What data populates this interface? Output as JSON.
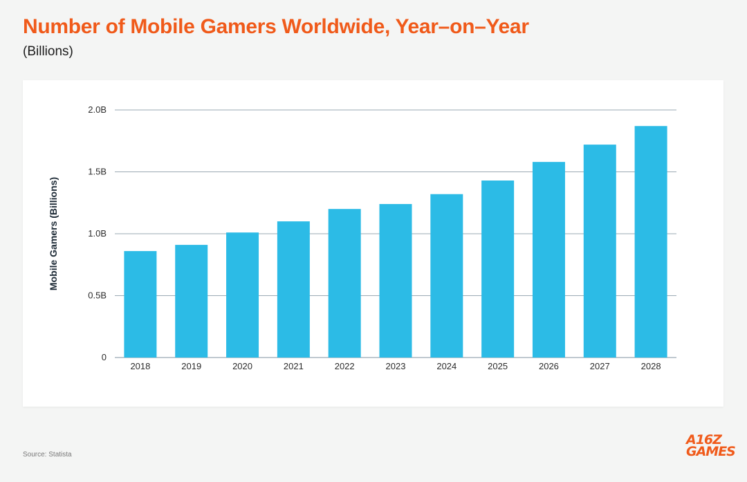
{
  "header": {
    "title": "Number of Mobile Gamers Worldwide, Year–on–Year",
    "subtitle": "(Billions)"
  },
  "colors": {
    "accent": "#f05a1a",
    "bar": "#2cbbe6",
    "grid": "#9aa9b3",
    "axis_title": "#1d2a36"
  },
  "footer": {
    "source": "Source:  Statista",
    "logo_line1": "A16Z",
    "logo_line2": "GAMES"
  },
  "chart_data": {
    "type": "bar",
    "title": "Number of Mobile Gamers Worldwide, Year–on–Year",
    "subtitle": "(Billions)",
    "xlabel": "",
    "ylabel": "Mobile Gamers (Billions)",
    "categories": [
      "2018",
      "2019",
      "2020",
      "2021",
      "2022",
      "2023",
      "2024",
      "2025",
      "2026",
      "2027",
      "2028"
    ],
    "series": [
      {
        "name": "Mobile Gamers",
        "values": [
          0.86,
          0.91,
          1.01,
          1.1,
          1.2,
          1.24,
          1.32,
          1.43,
          1.58,
          1.72,
          1.87
        ]
      }
    ],
    "ylim": [
      0,
      2.0
    ],
    "yticks": [
      0,
      0.5,
      1.0,
      1.5,
      2.0
    ],
    "ytick_labels": [
      "0",
      "0.5B",
      "1.0B",
      "1.5B",
      "2.0B"
    ],
    "grid": true,
    "legend": "none"
  }
}
